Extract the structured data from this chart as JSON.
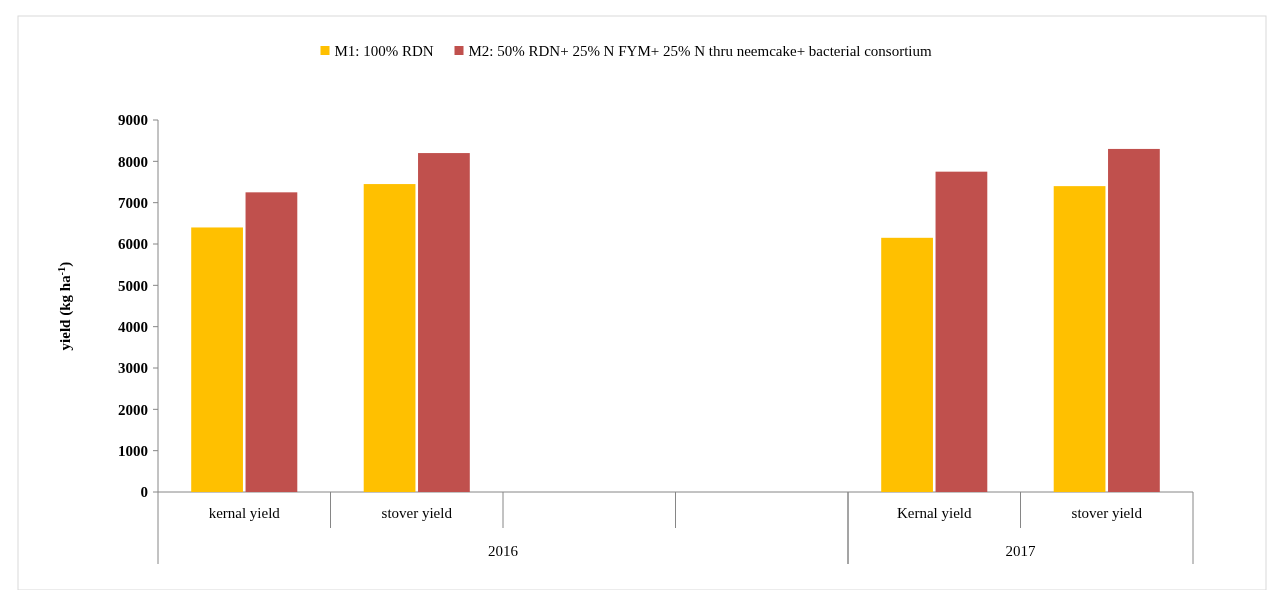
{
  "chart_data": {
    "type": "bar",
    "ylabel": "yield  (kg ha$^{-1}$)",
    "categories": [
      "kernal yield",
      "stover yield",
      null,
      null,
      "Kernal yield",
      "stover yield"
    ],
    "series": [
      {
        "name": "M1: 100% RDN",
        "color": "#ffc000",
        "values": [
          6400,
          7450,
          null,
          null,
          6150,
          7400
        ]
      },
      {
        "name": "M2: 50% RDN+ 25% N FYM+ 25% N thru neemcake+ bacterial consortium",
        "color": "#c0504d",
        "values": [
          7250,
          8200,
          null,
          null,
          7750,
          8300
        ]
      }
    ],
    "ylim": [
      0,
      9000
    ],
    "yticks": [
      0,
      1000,
      2000,
      3000,
      4000,
      5000,
      6000,
      7000,
      8000,
      9000
    ],
    "legend": "top",
    "annotations": [
      "2016",
      "2017"
    ]
  }
}
